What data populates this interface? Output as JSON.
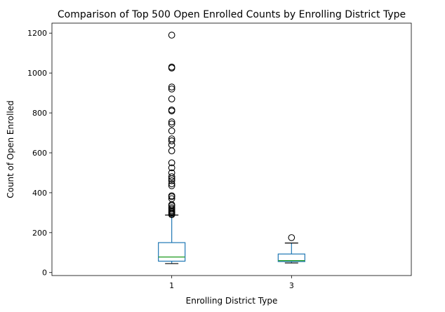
{
  "chart_data": {
    "type": "box",
    "title": "Comparison of Top 500 Open Enrolled Counts by Enrolling District Type",
    "xlabel": "Enrolling District Type",
    "ylabel": "Count of Open Enrolled",
    "categories": [
      "1",
      "3"
    ],
    "ylim": [
      -15,
      1250
    ],
    "yticks": [
      0,
      200,
      400,
      600,
      800,
      1000,
      1200
    ],
    "grid": false,
    "colors": {
      "box": "#1f77b4",
      "median": "#2ca02c",
      "whisker": "#1f77b4",
      "cap": "#000000",
      "flier": "#000000"
    },
    "boxes": [
      {
        "category": "1",
        "whisker_low": 45,
        "q1": 57,
        "median": 78,
        "q3": 150,
        "whisker_high": 288,
        "fliers": [
          290,
          295,
          300,
          305,
          310,
          318,
          325,
          335,
          340,
          370,
          380,
          385,
          435,
          445,
          460,
          470,
          480,
          500,
          525,
          550,
          610,
          640,
          660,
          670,
          710,
          745,
          755,
          810,
          815,
          870,
          920,
          930,
          1025,
          1030,
          1190
        ]
      },
      {
        "category": "3",
        "whisker_low": 48,
        "q1": 55,
        "median": 60,
        "q3": 93,
        "whisker_high": 148,
        "fliers": [
          175
        ]
      }
    ]
  }
}
